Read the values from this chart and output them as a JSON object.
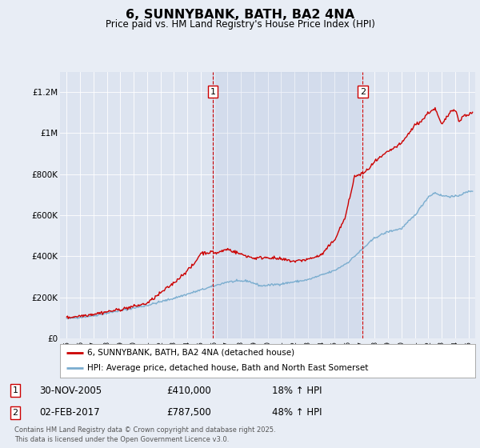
{
  "title": "6, SUNNYBANK, BATH, BA2 4NA",
  "subtitle": "Price paid vs. HM Land Registry's House Price Index (HPI)",
  "background_color": "#e8edf5",
  "plot_bg_color": "#dde4f0",
  "ylim": [
    0,
    1300000
  ],
  "yticks": [
    0,
    200000,
    400000,
    600000,
    800000,
    1000000,
    1200000
  ],
  "ytick_labels": [
    "£0",
    "£200K",
    "£400K",
    "£600K",
    "£800K",
    "£1M",
    "£1.2M"
  ],
  "marker1_date": 2005.92,
  "marker2_date": 2017.09,
  "legend_line1": "6, SUNNYBANK, BATH, BA2 4NA (detached house)",
  "legend_line2": "HPI: Average price, detached house, Bath and North East Somerset",
  "footer": "Contains HM Land Registry data © Crown copyright and database right 2025.\nThis data is licensed under the Open Government Licence v3.0.",
  "line_color_red": "#cc0000",
  "line_color_blue": "#7aadcf",
  "grid_color": "#ffffff",
  "table_row1": [
    "1",
    "30-NOV-2005",
    "£410,000",
    "18% ↑ HPI"
  ],
  "table_row2": [
    "2",
    "02-FEB-2017",
    "£787,500",
    "48% ↑ HPI"
  ]
}
